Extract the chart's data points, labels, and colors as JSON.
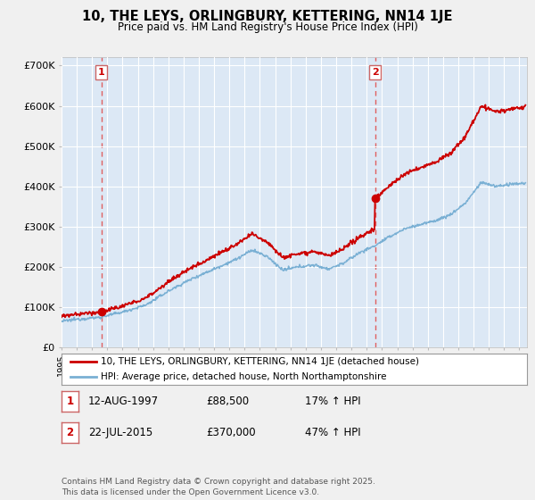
{
  "title": "10, THE LEYS, ORLINGBURY, KETTERING, NN14 1JE",
  "subtitle": "Price paid vs. HM Land Registry's House Price Index (HPI)",
  "background_color": "#f0f0f0",
  "plot_bg_color": "#dce8f5",
  "ylabel_ticks": [
    "£0",
    "£100K",
    "£200K",
    "£300K",
    "£400K",
    "£500K",
    "£600K",
    "£700K"
  ],
  "ytick_values": [
    0,
    100000,
    200000,
    300000,
    400000,
    500000,
    600000,
    700000
  ],
  "ylim": [
    0,
    720000
  ],
  "xlim_start": 1995.0,
  "xlim_end": 2025.5,
  "sale1_date": 1997.61,
  "sale1_price": 88500,
  "sale1_label": "1",
  "sale2_date": 2015.55,
  "sale2_price": 370000,
  "sale2_label": "2",
  "legend_line1": "10, THE LEYS, ORLINGBURY, KETTERING, NN14 1JE (detached house)",
  "legend_line2": "HPI: Average price, detached house, North Northamptonshire",
  "table_row1": [
    "1",
    "12-AUG-1997",
    "£88,500",
    "17% ↑ HPI"
  ],
  "table_row2": [
    "2",
    "22-JUL-2015",
    "£370,000",
    "47% ↑ HPI"
  ],
  "footer": "Contains HM Land Registry data © Crown copyright and database right 2025.\nThis data is licensed under the Open Government Licence v3.0.",
  "red_line_color": "#cc0000",
  "blue_line_color": "#7ab0d4",
  "dashed_line_color": "#e06060",
  "grid_color": "#ffffff",
  "sale_box_edge": "#cc6666"
}
